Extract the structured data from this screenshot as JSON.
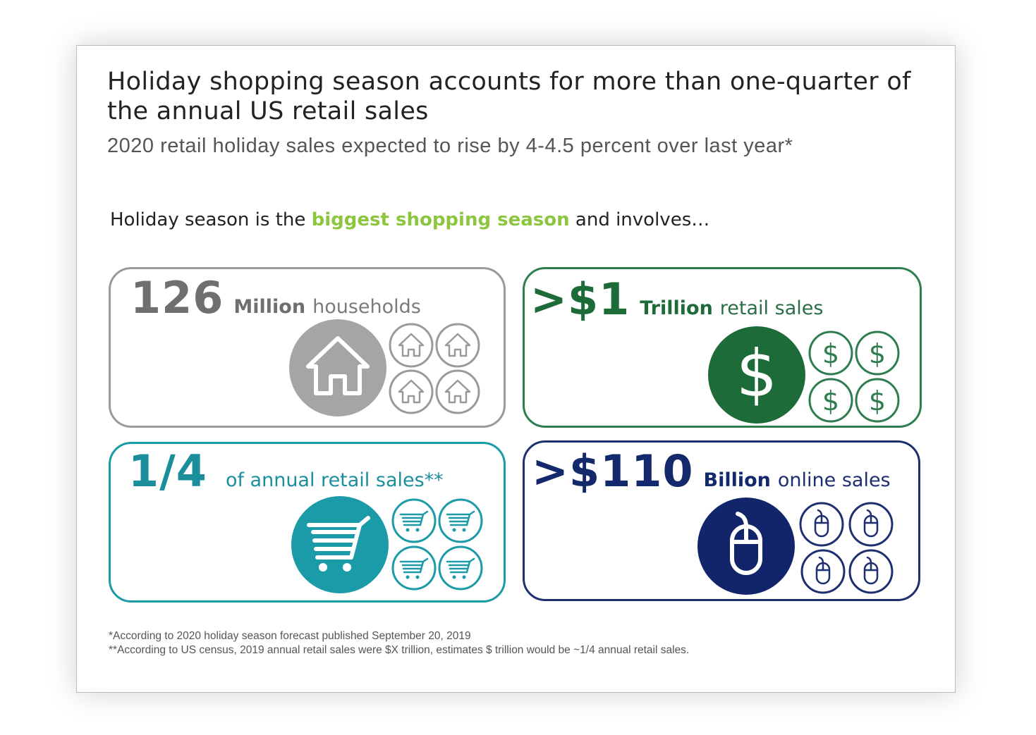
{
  "slide": {
    "title": "Holiday shopping season accounts for more than one-quarter of the annual US retail sales",
    "subtitle": "2020 retail holiday sales expected to rise by 4-4.5 percent over last year*",
    "intro": {
      "before": "Holiday season is the ",
      "highlight": "biggest shopping season",
      "after": " and involves…"
    },
    "colors": {
      "highlight": "#8cc63f",
      "gray": "#9a9a9a",
      "green": "#1e6b3a",
      "teal": "#1b9aa8",
      "navy": "#14296b"
    }
  },
  "cards": {
    "households": {
      "number": "126",
      "unit": "Million",
      "desc": "households",
      "icon": "house-icon"
    },
    "retail": {
      "number": ">$1",
      "unit": "Trillion",
      "desc": "retail sales",
      "icon": "dollar-icon"
    },
    "share": {
      "number": "1/4",
      "unit": "",
      "desc": "of annual retail sales**",
      "icon": "cart-icon"
    },
    "online": {
      "number": ">$110",
      "unit": "Billion",
      "desc": "online sales",
      "icon": "mouse-icon"
    }
  },
  "footnotes": {
    "note1": "*According to 2020 holiday season forecast published September 20, 2019",
    "note2": "**According to US census, 2019 annual retail sales were $X trillion, estimates $ trillion would be ~1/4 annual retail sales."
  }
}
